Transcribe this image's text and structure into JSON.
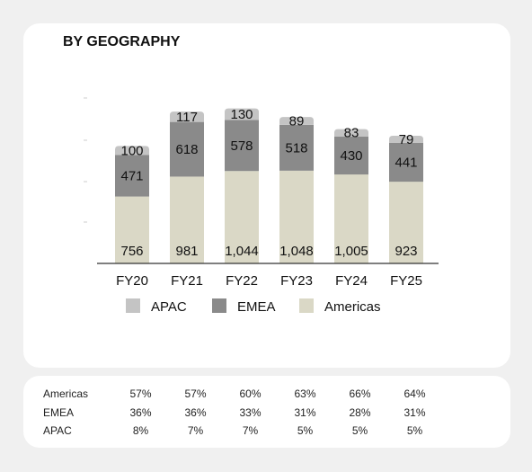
{
  "title": "BY GEOGRAPHY",
  "chart_data": {
    "type": "bar",
    "stacked": true,
    "categories": [
      "FY20",
      "FY21",
      "FY22",
      "FY23",
      "FY24",
      "FY25"
    ],
    "series": [
      {
        "name": "Americas",
        "values": [
          756,
          981,
          1044,
          1048,
          1005,
          923
        ],
        "labels": [
          "756",
          "981",
          "1,044",
          "1,048",
          "1,005",
          "923"
        ],
        "color": "#dad8c6"
      },
      {
        "name": "EMEA",
        "values": [
          471,
          618,
          578,
          518,
          430,
          441
        ],
        "labels": [
          "471",
          "618",
          "578",
          "518",
          "430",
          "441"
        ],
        "color": "#8a8a8a"
      },
      {
        "name": "APAC",
        "values": [
          100,
          117,
          130,
          89,
          83,
          79
        ],
        "labels": [
          "100",
          "117",
          "130",
          "89",
          "83",
          "79"
        ],
        "color": "#c4c4c4"
      }
    ],
    "legend_order": [
      "APAC",
      "EMEA",
      "Americas"
    ],
    "legend_position": "bottom",
    "ylim": [
      0,
      1900
    ],
    "grid": false,
    "xlabel": "",
    "ylabel": ""
  },
  "share_table": {
    "rows": [
      {
        "label": "Americas",
        "values": [
          "57%",
          "57%",
          "60%",
          "63%",
          "66%",
          "64%"
        ]
      },
      {
        "label": "EMEA",
        "values": [
          "36%",
          "36%",
          "33%",
          "31%",
          "28%",
          "31%"
        ]
      },
      {
        "label": "APAC",
        "values": [
          "8%",
          "7%",
          "7%",
          "5%",
          "5%",
          "5%"
        ]
      }
    ]
  }
}
